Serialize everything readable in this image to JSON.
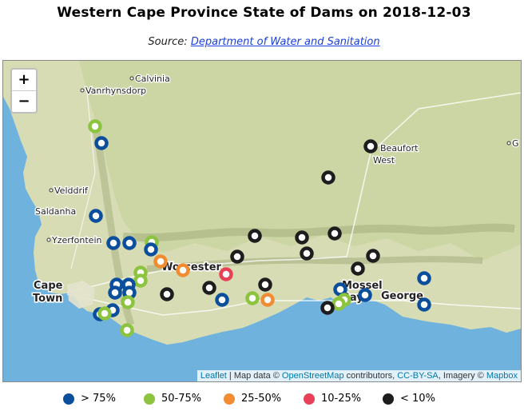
{
  "title": "Western Cape Province State of Dams on 2018-12-03",
  "source_prefix": "Source:",
  "source_link": "Department of Water and Sanitation",
  "zoom": {
    "in": "+",
    "out": "−"
  },
  "attribution": {
    "leaflet": "Leaflet",
    "sep1": " | Map data © ",
    "osm": "OpenStreetMap",
    "mid": " contributors, ",
    "license": "CC-BY-SA",
    "imagery": ", Imagery © ",
    "mapbox": "Mapbox"
  },
  "colors": {
    "gt75": "#0b4e9c",
    "c50_75": "#8cc43f",
    "c25_50": "#f18c32",
    "c10_25": "#e84057",
    "lt10": "#1d1d1d",
    "sea": "#6fb2de",
    "land": "#d7dcb4"
  },
  "place_labels": [
    {
      "name": "Calvinia",
      "class": "town"
    },
    {
      "name": "Vanrhynsdorp",
      "class": "town"
    },
    {
      "name": "Beaufort",
      "class": "town"
    },
    {
      "name": "West",
      "class": "town"
    },
    {
      "name": "Velddrif",
      "class": "town"
    },
    {
      "name": "Saldanha",
      "class": "town"
    },
    {
      "name": "Yzerfontein",
      "class": "town"
    },
    {
      "name": "Worcester",
      "class": "city"
    },
    {
      "name": "Cape",
      "class": "city"
    },
    {
      "name": "Town",
      "class": "city"
    },
    {
      "name": "George",
      "class": "city"
    },
    {
      "name": "Mossel",
      "class": "city"
    },
    {
      "name": "Bay",
      "class": "city"
    },
    {
      "name": "G",
      "class": "town"
    }
  ],
  "legend": [
    {
      "label": "> 75%",
      "color_key": "gt75"
    },
    {
      "label": "50-75%",
      "color_key": "c50_75"
    },
    {
      "label": "25-50%",
      "color_key": "c25_50"
    },
    {
      "label": "10-25%",
      "color_key": "c10_25"
    },
    {
      "label": "< 10%",
      "color_key": "lt10"
    }
  ],
  "dam_categories": {
    "gt75": 21,
    "c50_75": 9,
    "c25_50": 3,
    "c10_25": 1,
    "lt10": 17
  }
}
